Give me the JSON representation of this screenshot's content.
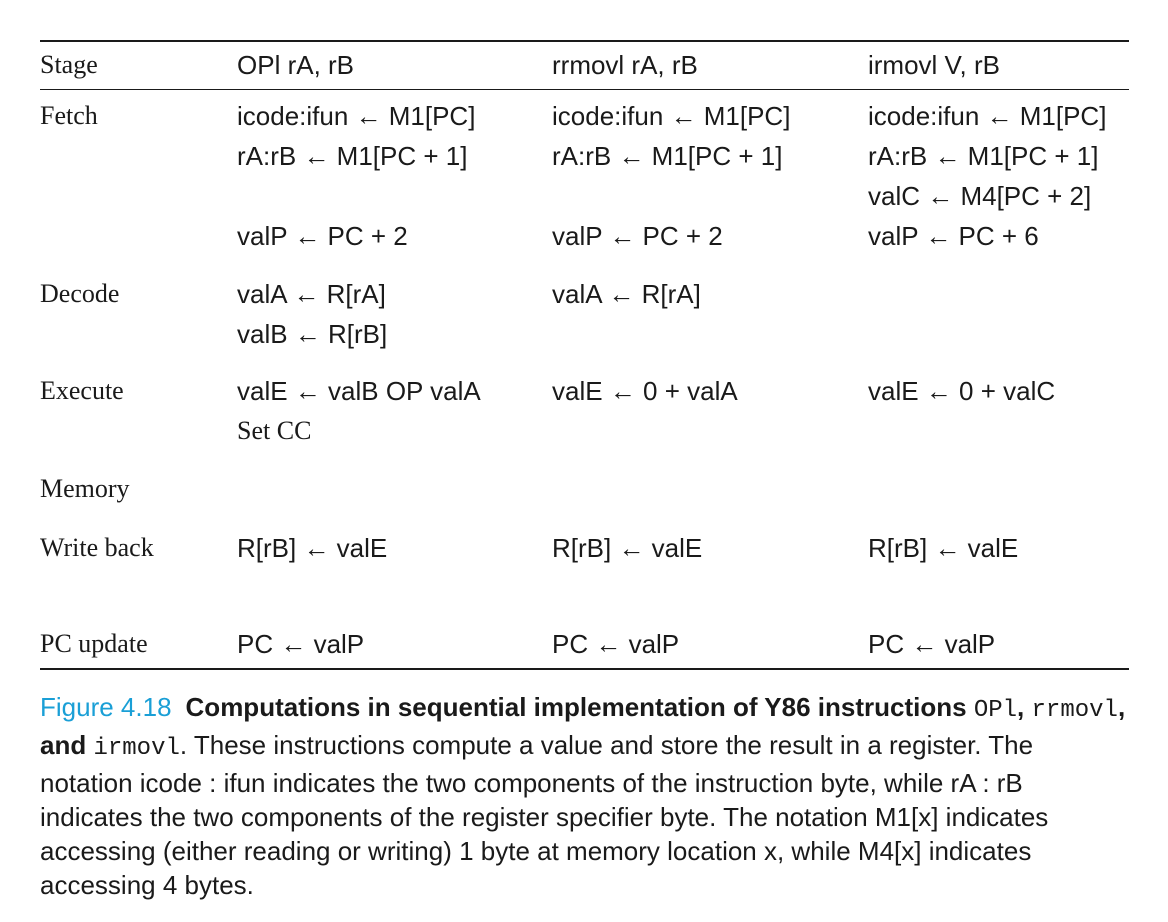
{
  "table": {
    "headers": {
      "stage": "Stage",
      "col1": "OPl rA, rB",
      "col2": "rrmovl rA, rB",
      "col3": "irmovl V, rB"
    },
    "rows": {
      "fetch": {
        "stage": "Fetch",
        "col1": [
          "icode:ifun ← M1[PC]",
          "rA:rB ← M1[PC + 1]",
          "",
          "valP ← PC + 2"
        ],
        "col2": [
          "icode:ifun ← M1[PC]",
          "rA:rB ← M1[PC + 1]",
          "",
          "valP ← PC + 2"
        ],
        "col3": [
          "icode:ifun ← M1[PC]",
          "rA:rB ← M1[PC + 1]",
          "valC ← M4[PC + 2]",
          "valP ← PC + 6"
        ]
      },
      "decode": {
        "stage": "Decode",
        "col1": [
          "valA ← R[rA]",
          "valB ← R[rB]"
        ],
        "col2": [
          "valA ← R[rA]"
        ],
        "col3": []
      },
      "execute": {
        "stage": "Execute",
        "col1": [
          "valE ← valB OP valA",
          "Set CC"
        ],
        "col2": [
          "valE ← 0 + valA"
        ],
        "col3": [
          "valE ← 0 + valC"
        ]
      },
      "memory": {
        "stage": "Memory",
        "col1": [],
        "col2": [],
        "col3": []
      },
      "writeback": {
        "stage": "Write back",
        "col1": [
          "R[rB] ← valE"
        ],
        "col2": [
          "R[rB] ← valE"
        ],
        "col3": [
          "R[rB] ← valE"
        ]
      },
      "pcupdate": {
        "stage": "PC update",
        "col1": [
          "PC ← valP"
        ],
        "col2": [
          "PC ← valP"
        ],
        "col3": [
          "PC ← valP"
        ]
      }
    }
  },
  "caption": {
    "figure_number": "Figure 4.18",
    "title": "Computations in sequential implementation of Y86 instructions",
    "instr1": "OPl",
    "sep1": ",",
    "instr2": "rrmovl",
    "sep2": ", and",
    "instr3": "irmovl",
    "body": ". These instructions compute a value and store the result in a register. The notation icode : ifun indicates the two components of the instruction byte, while rA : rB indicates the two components of the register specifier byte. The notation M1[x] indicates accessing (either reading or writing) 1 byte at memory location x, while M4[x] indicates accessing 4 bytes."
  }
}
